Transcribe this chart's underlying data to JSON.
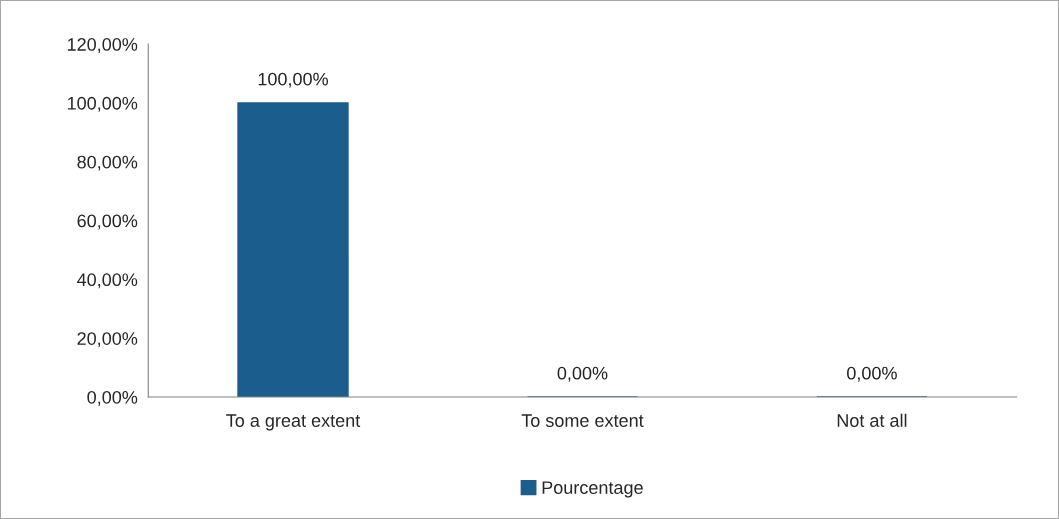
{
  "chart_data": {
    "type": "bar",
    "categories": [
      "To a great extent",
      "To some extent",
      "Not at all"
    ],
    "series": [
      {
        "name": "Pourcentage",
        "color": "#1b5d8c",
        "values": [
          100,
          0,
          0
        ],
        "value_labels": [
          "100,00%",
          "0,00%",
          "0,00%"
        ]
      }
    ],
    "ylim": [
      0,
      120
    ],
    "yticks": [
      {
        "value": 0,
        "label": "0,00%"
      },
      {
        "value": 20,
        "label": "20,00%"
      },
      {
        "value": 40,
        "label": "40,00%"
      },
      {
        "value": 60,
        "label": "60,00%"
      },
      {
        "value": 80,
        "label": "80,00%"
      },
      {
        "value": 100,
        "label": "100,00%"
      },
      {
        "value": 120,
        "label": "120,00%"
      }
    ],
    "grid": false,
    "legend": "bottom"
  }
}
